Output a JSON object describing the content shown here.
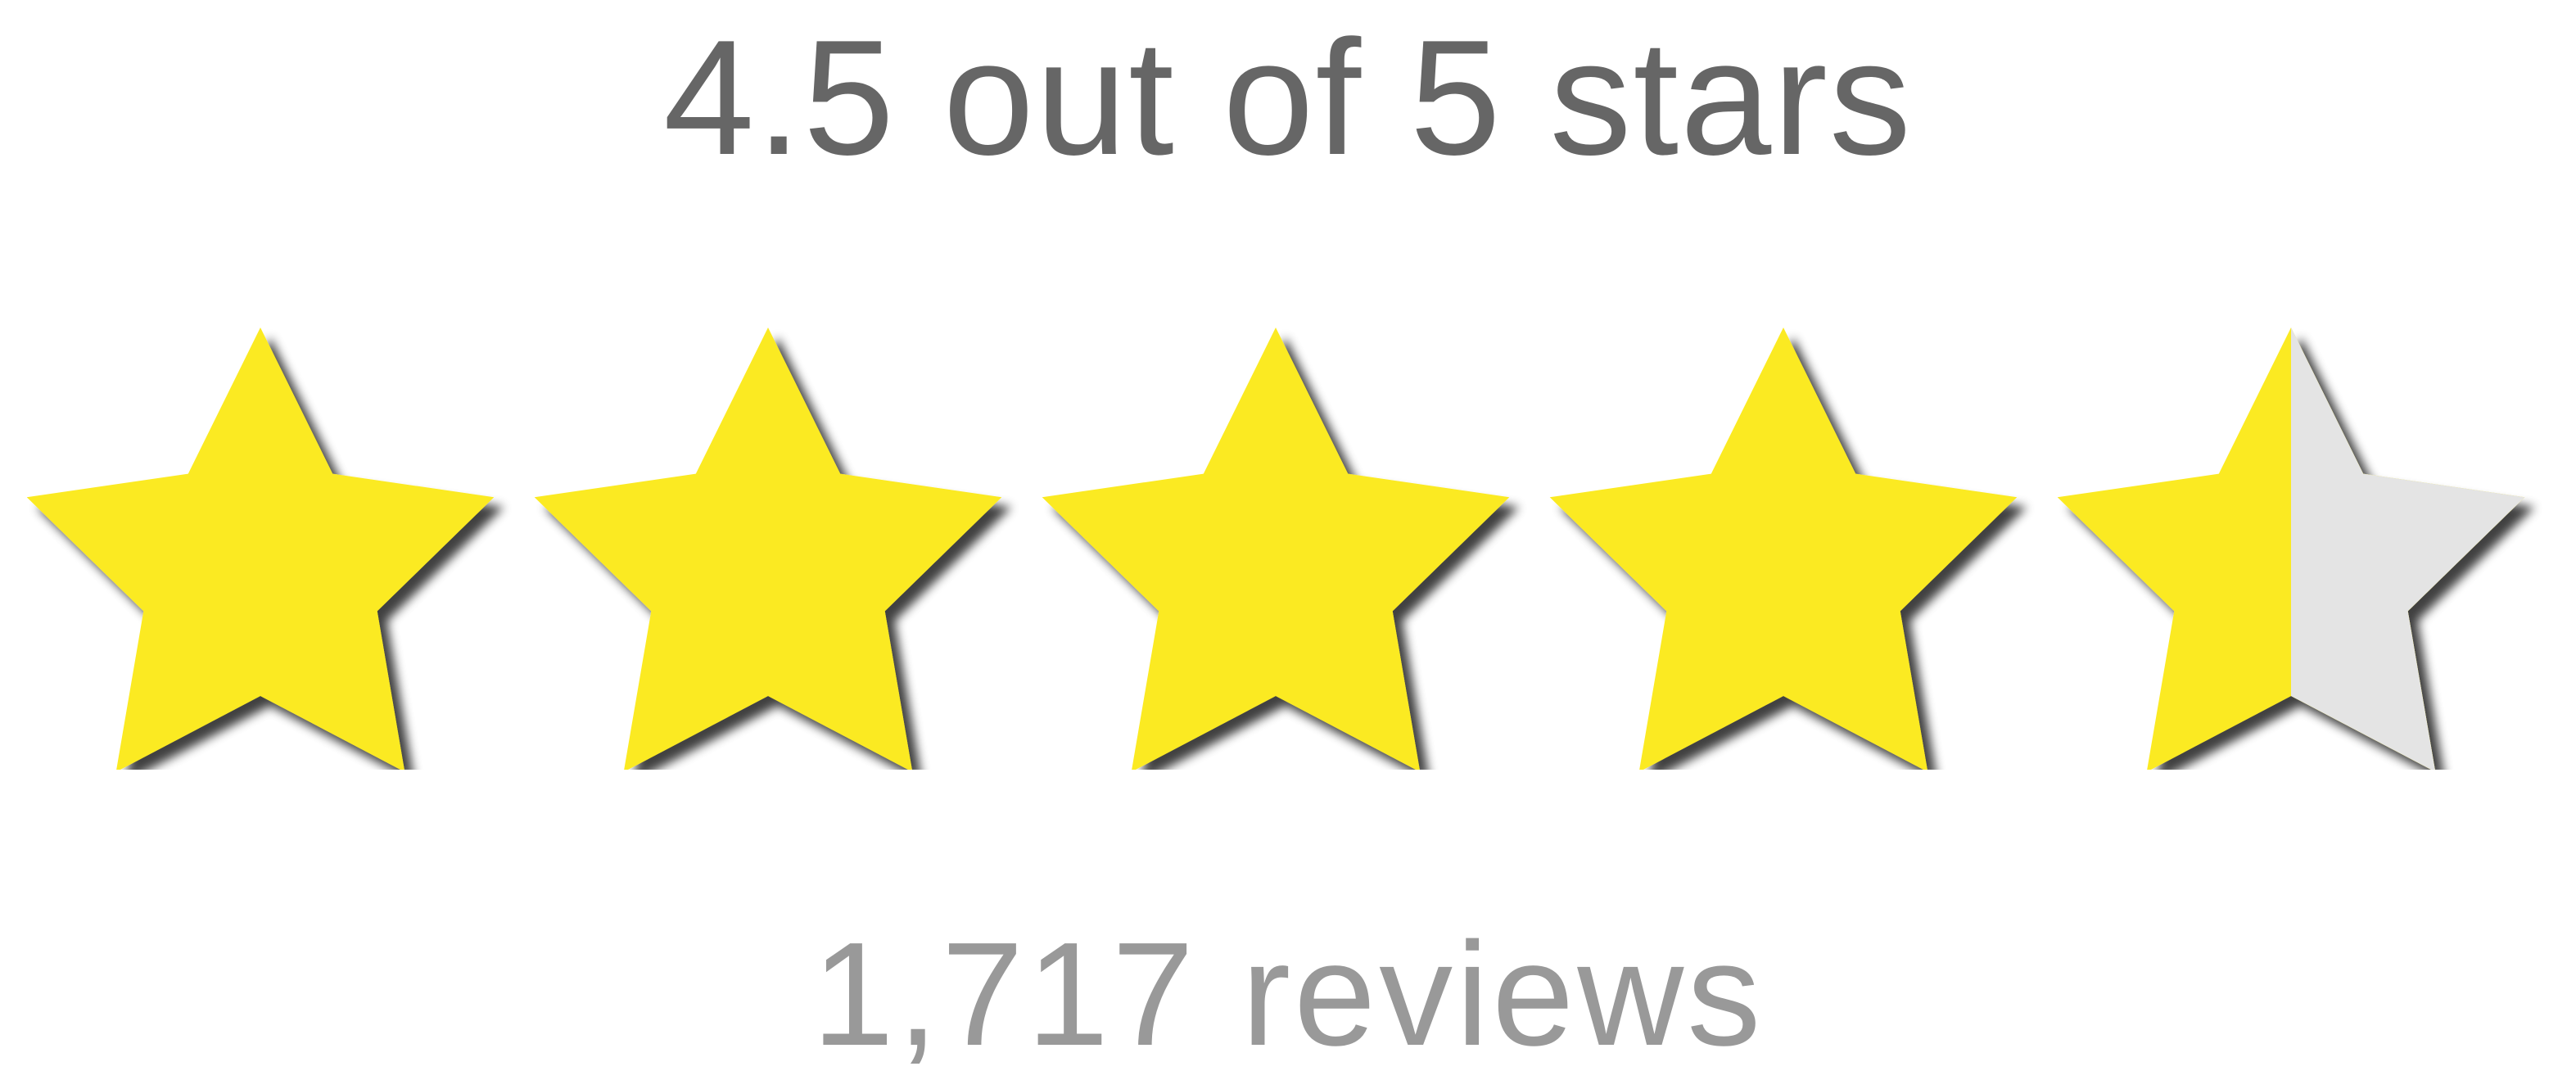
{
  "rating": {
    "title": "4.5 out of 5 stars",
    "value": 4.5,
    "max": 5,
    "filled_color": "#FBEA22",
    "empty_color": "#E4E4E4",
    "shadow_color": "#555555",
    "icon": "star-icon"
  },
  "reviews": {
    "count_label": "1,717 reviews"
  }
}
